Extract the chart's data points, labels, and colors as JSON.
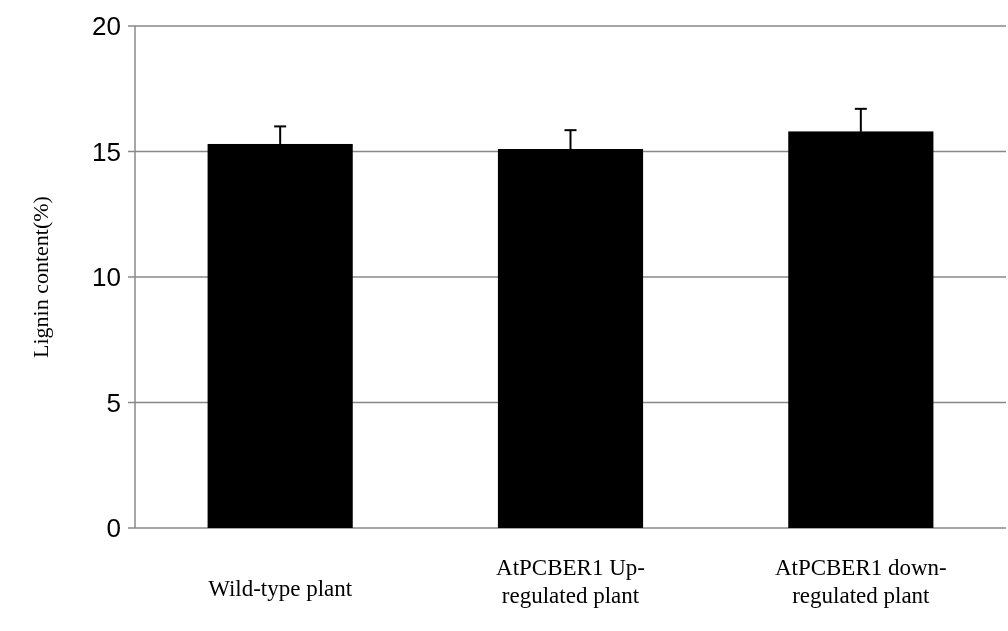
{
  "chart_data": {
    "type": "bar",
    "ylabel": "Lignin content(%)",
    "categories": [
      "Wild-type plant",
      "AtPCBER1 Up-regulated plant",
      "AtPCBER1 down-regulated plant"
    ],
    "values": [
      15.3,
      15.1,
      15.8
    ],
    "errors": [
      0.7,
      0.75,
      0.9
    ],
    "color": "#000000",
    "ylim": [
      0,
      20
    ],
    "yticks": [
      0,
      5,
      10,
      15,
      20
    ],
    "grid": "y"
  }
}
